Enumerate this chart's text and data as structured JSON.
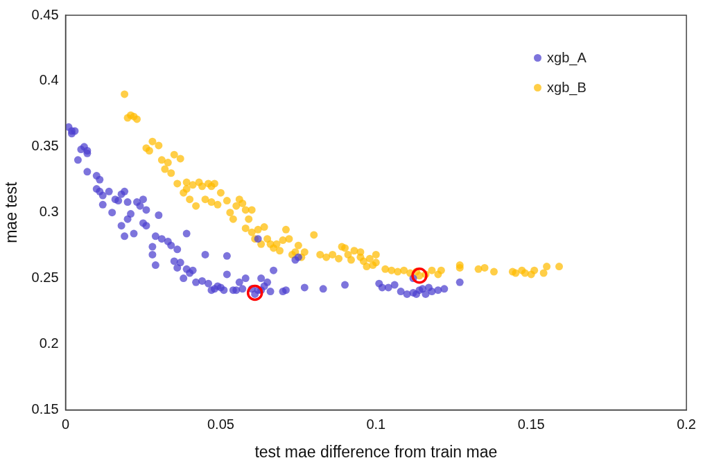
{
  "chart_data": {
    "type": "scatter",
    "xlabel": "test mae difference from train mae",
    "ylabel": "mae test",
    "xlim": [
      0,
      0.2
    ],
    "xticks": [
      0,
      0.05,
      0.1,
      0.15,
      0.2
    ],
    "ylim": [
      0.15,
      0.45
    ],
    "yticks": [
      0.15,
      0.2,
      0.25,
      0.3,
      0.35,
      0.4,
      0.45
    ],
    "grid": false,
    "legend": "top right",
    "marker": "circle",
    "series": [
      {
        "name": "xgb_A",
        "color": "#4b3fcf",
        "x": [
          0.001,
          0.002,
          0.002,
          0.003,
          0.004,
          0.005,
          0.006,
          0.007,
          0.007,
          0.007,
          0.01,
          0.011,
          0.01,
          0.011,
          0.012,
          0.012,
          0.014,
          0.015,
          0.016,
          0.017,
          0.018,
          0.018,
          0.019,
          0.019,
          0.02,
          0.02,
          0.021,
          0.022,
          0.023,
          0.024,
          0.025,
          0.025,
          0.026,
          0.026,
          0.028,
          0.028,
          0.029,
          0.029,
          0.03,
          0.031,
          0.033,
          0.034,
          0.035,
          0.036,
          0.036,
          0.037,
          0.038,
          0.039,
          0.039,
          0.04,
          0.041,
          0.042,
          0.044,
          0.045,
          0.046,
          0.047,
          0.048,
          0.049,
          0.05,
          0.051,
          0.052,
          0.052,
          0.054,
          0.055,
          0.056,
          0.057,
          0.058,
          0.06,
          0.061,
          0.062,
          0.063,
          0.063,
          0.064,
          0.065,
          0.066,
          0.067,
          0.062,
          0.07,
          0.071,
          0.074,
          0.075,
          0.077,
          0.083,
          0.09,
          0.101,
          0.102,
          0.104,
          0.106,
          0.108,
          0.11,
          0.112,
          0.113,
          0.114,
          0.115,
          0.116,
          0.117,
          0.118,
          0.12,
          0.122,
          0.127,
          0.112
        ],
        "values": [
          0.365,
          0.362,
          0.36,
          0.362,
          0.34,
          0.348,
          0.35,
          0.345,
          0.347,
          0.331,
          0.328,
          0.325,
          0.318,
          0.316,
          0.313,
          0.306,
          0.316,
          0.3,
          0.31,
          0.309,
          0.314,
          0.29,
          0.316,
          0.282,
          0.295,
          0.308,
          0.299,
          0.284,
          0.308,
          0.305,
          0.292,
          0.31,
          0.29,
          0.302,
          0.274,
          0.268,
          0.282,
          0.26,
          0.298,
          0.28,
          0.278,
          0.275,
          0.263,
          0.258,
          0.272,
          0.262,
          0.25,
          0.257,
          0.284,
          0.254,
          0.256,
          0.247,
          0.248,
          0.268,
          0.246,
          0.241,
          0.242,
          0.244,
          0.243,
          0.241,
          0.253,
          0.267,
          0.241,
          0.241,
          0.247,
          0.242,
          0.25,
          0.242,
          0.238,
          0.241,
          0.241,
          0.25,
          0.244,
          0.247,
          0.24,
          0.256,
          0.28,
          0.24,
          0.241,
          0.264,
          0.266,
          0.243,
          0.242,
          0.245,
          0.246,
          0.243,
          0.243,
          0.245,
          0.24,
          0.238,
          0.239,
          0.238,
          0.241,
          0.242,
          0.238,
          0.243,
          0.24,
          0.241,
          0.242,
          0.247,
          0.25
        ]
      },
      {
        "name": "xgb_B",
        "color": "#ffbb00",
        "x": [
          0.019,
          0.02,
          0.021,
          0.022,
          0.023,
          0.026,
          0.027,
          0.028,
          0.03,
          0.031,
          0.032,
          0.033,
          0.034,
          0.035,
          0.036,
          0.037,
          0.038,
          0.039,
          0.039,
          0.04,
          0.041,
          0.042,
          0.043,
          0.044,
          0.045,
          0.046,
          0.047,
          0.047,
          0.048,
          0.049,
          0.05,
          0.052,
          0.053,
          0.054,
          0.055,
          0.056,
          0.057,
          0.058,
          0.058,
          0.059,
          0.06,
          0.06,
          0.061,
          0.062,
          0.063,
          0.064,
          0.065,
          0.066,
          0.067,
          0.068,
          0.069,
          0.07,
          0.071,
          0.072,
          0.073,
          0.074,
          0.075,
          0.076,
          0.077,
          0.08,
          0.082,
          0.084,
          0.086,
          0.088,
          0.089,
          0.09,
          0.091,
          0.092,
          0.093,
          0.095,
          0.095,
          0.096,
          0.097,
          0.098,
          0.099,
          0.1,
          0.1,
          0.103,
          0.105,
          0.107,
          0.109,
          0.111,
          0.113,
          0.114,
          0.116,
          0.118,
          0.12,
          0.121,
          0.127,
          0.127,
          0.133,
          0.135,
          0.138,
          0.144,
          0.145,
          0.147,
          0.148,
          0.15,
          0.151,
          0.154,
          0.155,
          0.159
        ],
        "values": [
          0.39,
          0.372,
          0.374,
          0.373,
          0.371,
          0.349,
          0.347,
          0.354,
          0.351,
          0.34,
          0.333,
          0.338,
          0.33,
          0.344,
          0.322,
          0.341,
          0.315,
          0.318,
          0.323,
          0.31,
          0.321,
          0.305,
          0.323,
          0.32,
          0.31,
          0.322,
          0.32,
          0.308,
          0.322,
          0.306,
          0.315,
          0.309,
          0.3,
          0.295,
          0.305,
          0.31,
          0.307,
          0.302,
          0.288,
          0.295,
          0.302,
          0.285,
          0.28,
          0.287,
          0.276,
          0.289,
          0.28,
          0.276,
          0.273,
          0.276,
          0.271,
          0.279,
          0.287,
          0.28,
          0.268,
          0.27,
          0.275,
          0.266,
          0.27,
          0.283,
          0.268,
          0.266,
          0.268,
          0.265,
          0.274,
          0.273,
          0.268,
          0.264,
          0.271,
          0.27,
          0.266,
          0.263,
          0.259,
          0.265,
          0.26,
          0.262,
          0.268,
          0.257,
          0.256,
          0.255,
          0.256,
          0.254,
          0.255,
          0.252,
          0.253,
          0.256,
          0.253,
          0.256,
          0.26,
          0.258,
          0.257,
          0.258,
          0.255,
          0.255,
          0.254,
          0.256,
          0.254,
          0.253,
          0.256,
          0.254,
          0.259,
          0.259
        ]
      },
      {
        "color": "#ff0000",
        "marker": "circle",
        "x": [
          0.061,
          0.114
        ],
        "values": [
          0.239,
          0.252
        ]
      }
    ]
  }
}
